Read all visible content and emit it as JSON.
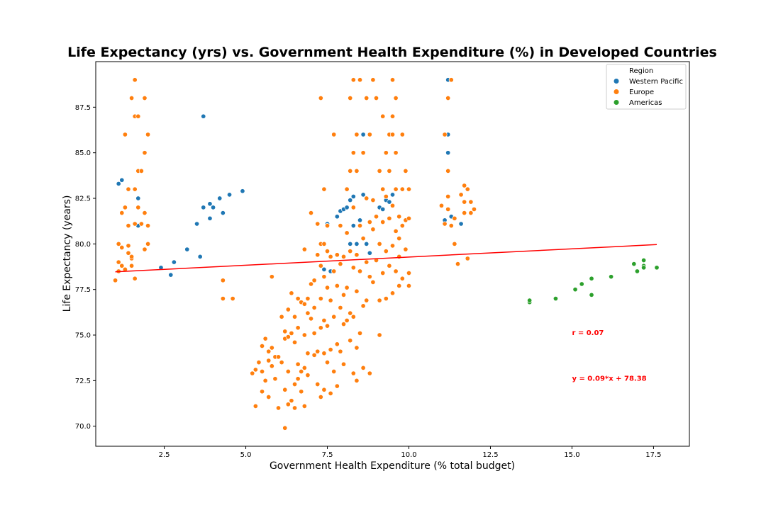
{
  "chart_data": {
    "type": "scatter",
    "title": "Life Expectancy (yrs) vs. Government Health Expenditure (%) in Developed Countries",
    "xlabel": "Government Health Expenditure (% total budget)",
    "ylabel": "Life Expectancy (years)",
    "xlim": [
      0.4,
      18.6
    ],
    "ylim": [
      68.9,
      90.0
    ],
    "xticks": [
      2.5,
      5.0,
      7.5,
      10.0,
      12.5,
      15.0,
      17.5
    ],
    "xtick_labels": [
      "2.5",
      "5.0",
      "7.5",
      "10.0",
      "12.5",
      "15.0",
      "17.5"
    ],
    "yticks": [
      70.0,
      72.5,
      75.0,
      77.5,
      80.0,
      82.5,
      85.0,
      87.5
    ],
    "ytick_labels": [
      "70.0",
      "72.5",
      "75.0",
      "77.5",
      "80.0",
      "82.5",
      "85.0",
      "87.5"
    ],
    "grid": false,
    "legend": {
      "title": "Region",
      "placement": "top-right"
    },
    "series": [
      {
        "name": "Western Pacific",
        "color": "#1f77b4",
        "points": [
          [
            1.1,
            83.3
          ],
          [
            1.2,
            83.5
          ],
          [
            1.7,
            82.5
          ],
          [
            1.7,
            81.0
          ],
          [
            2.4,
            78.7
          ],
          [
            2.7,
            78.3
          ],
          [
            2.8,
            79.0
          ],
          [
            3.2,
            79.7
          ],
          [
            3.5,
            81.1
          ],
          [
            3.6,
            79.3
          ],
          [
            3.7,
            87.0
          ],
          [
            3.7,
            82.0
          ],
          [
            3.9,
            81.4
          ],
          [
            3.9,
            82.2
          ],
          [
            4.0,
            82.0
          ],
          [
            4.2,
            82.5
          ],
          [
            4.3,
            81.7
          ],
          [
            4.5,
            82.7
          ],
          [
            4.9,
            82.9
          ],
          [
            7.5,
            81.1
          ],
          [
            7.4,
            78.6
          ],
          [
            7.6,
            78.5
          ],
          [
            7.8,
            81.5
          ],
          [
            7.9,
            81.8
          ],
          [
            8.0,
            81.9
          ],
          [
            8.1,
            82.0
          ],
          [
            8.2,
            82.4
          ],
          [
            8.2,
            80.0
          ],
          [
            8.3,
            82.6
          ],
          [
            8.3,
            81.0
          ],
          [
            8.4,
            80.0
          ],
          [
            8.5,
            81.3
          ],
          [
            8.6,
            86.0
          ],
          [
            8.6,
            82.7
          ],
          [
            8.7,
            80.0
          ],
          [
            8.8,
            79.5
          ],
          [
            9.1,
            82.0
          ],
          [
            9.2,
            81.9
          ],
          [
            9.3,
            82.4
          ],
          [
            9.4,
            82.3
          ],
          [
            9.5,
            82.7
          ],
          [
            11.2,
            89.0
          ],
          [
            11.2,
            86.0
          ],
          [
            11.2,
            85.0
          ],
          [
            11.1,
            81.3
          ],
          [
            11.3,
            81.5
          ],
          [
            11.6,
            81.1
          ]
        ]
      },
      {
        "name": "Europe",
        "color": "#ff7f0e",
        "points": [
          [
            1.0,
            78.0
          ],
          [
            1.1,
            78.5
          ],
          [
            1.1,
            80.0
          ],
          [
            1.2,
            79.8
          ],
          [
            1.2,
            81.7
          ],
          [
            1.3,
            82.0
          ],
          [
            1.3,
            86.0
          ],
          [
            1.3,
            78.6
          ],
          [
            1.4,
            79.5
          ],
          [
            1.4,
            79.9
          ],
          [
            1.4,
            83.0
          ],
          [
            1.4,
            81.0
          ],
          [
            1.5,
            88.0
          ],
          [
            1.5,
            79.2
          ],
          [
            1.5,
            78.8
          ],
          [
            1.6,
            89.0
          ],
          [
            1.6,
            87.0
          ],
          [
            1.6,
            83.0
          ],
          [
            1.6,
            81.1
          ],
          [
            1.6,
            78.1
          ],
          [
            1.7,
            84.0
          ],
          [
            1.7,
            87.0
          ],
          [
            1.7,
            82.0
          ],
          [
            1.8,
            84.0
          ],
          [
            1.8,
            81.1
          ],
          [
            1.9,
            85.0
          ],
          [
            1.9,
            81.7
          ],
          [
            1.9,
            79.7
          ],
          [
            1.9,
            88.0
          ],
          [
            2.0,
            86.0
          ],
          [
            2.0,
            81.0
          ],
          [
            2.0,
            80.0
          ],
          [
            1.1,
            79.0
          ],
          [
            1.2,
            78.8
          ],
          [
            1.5,
            79.3
          ],
          [
            4.3,
            78.0
          ],
          [
            4.3,
            77.0
          ],
          [
            4.6,
            77.0
          ],
          [
            5.2,
            72.9
          ],
          [
            5.3,
            73.1
          ],
          [
            5.3,
            71.1
          ],
          [
            5.4,
            73.5
          ],
          [
            5.5,
            71.9
          ],
          [
            5.5,
            73.0
          ],
          [
            5.5,
            74.4
          ],
          [
            5.6,
            74.8
          ],
          [
            5.6,
            72.5
          ],
          [
            5.7,
            74.1
          ],
          [
            5.7,
            73.6
          ],
          [
            5.7,
            71.6
          ],
          [
            5.8,
            78.2
          ],
          [
            5.8,
            74.3
          ],
          [
            5.8,
            73.3
          ],
          [
            5.9,
            73.8
          ],
          [
            5.9,
            72.6
          ],
          [
            6.0,
            73.8
          ],
          [
            6.0,
            71.0
          ],
          [
            6.1,
            76.0
          ],
          [
            6.1,
            73.5
          ],
          [
            6.2,
            74.8
          ],
          [
            6.2,
            75.2
          ],
          [
            6.2,
            72.0
          ],
          [
            6.2,
            69.9
          ],
          [
            6.3,
            76.4
          ],
          [
            6.3,
            74.9
          ],
          [
            6.3,
            73.0
          ],
          [
            6.3,
            71.2
          ],
          [
            6.4,
            77.3
          ],
          [
            6.4,
            75.1
          ],
          [
            6.4,
            71.4
          ],
          [
            6.5,
            76.0
          ],
          [
            6.5,
            74.6
          ],
          [
            6.5,
            72.3
          ],
          [
            6.5,
            71.0
          ],
          [
            6.6,
            77.0
          ],
          [
            6.6,
            75.4
          ],
          [
            6.6,
            73.4
          ],
          [
            6.6,
            72.6
          ],
          [
            6.7,
            76.8
          ],
          [
            6.7,
            73.0
          ],
          [
            6.7,
            71.9
          ],
          [
            6.8,
            79.7
          ],
          [
            6.8,
            76.7
          ],
          [
            6.8,
            75.0
          ],
          [
            6.8,
            73.2
          ],
          [
            6.8,
            71.1
          ],
          [
            6.9,
            77.0
          ],
          [
            6.9,
            76.2
          ],
          [
            6.9,
            74.0
          ],
          [
            6.9,
            72.8
          ],
          [
            7.0,
            81.7
          ],
          [
            7.0,
            77.8
          ],
          [
            7.0,
            75.9
          ],
          [
            7.1,
            78.0
          ],
          [
            7.1,
            76.5
          ],
          [
            7.1,
            75.1
          ],
          [
            7.1,
            73.9
          ],
          [
            7.2,
            81.1
          ],
          [
            7.2,
            79.4
          ],
          [
            7.2,
            74.1
          ],
          [
            7.2,
            72.3
          ],
          [
            7.3,
            88.0
          ],
          [
            7.3,
            80.0
          ],
          [
            7.3,
            78.8
          ],
          [
            7.3,
            77.0
          ],
          [
            7.3,
            75.4
          ],
          [
            7.3,
            71.6
          ],
          [
            7.4,
            83.0
          ],
          [
            7.4,
            80.0
          ],
          [
            7.4,
            78.2
          ],
          [
            7.4,
            75.8
          ],
          [
            7.4,
            74.0
          ],
          [
            7.4,
            72.0
          ],
          [
            7.5,
            81.0
          ],
          [
            7.5,
            79.6
          ],
          [
            7.5,
            77.6
          ],
          [
            7.5,
            75.5
          ],
          [
            7.5,
            73.5
          ],
          [
            7.6,
            79.3
          ],
          [
            7.6,
            76.9
          ],
          [
            7.6,
            74.2
          ],
          [
            7.6,
            71.8
          ],
          [
            7.7,
            86.0
          ],
          [
            7.7,
            78.5
          ],
          [
            7.7,
            76.0
          ],
          [
            7.7,
            73.0
          ],
          [
            7.8,
            79.4
          ],
          [
            7.8,
            77.7
          ],
          [
            7.8,
            74.5
          ],
          [
            7.8,
            72.2
          ],
          [
            7.9,
            81.0
          ],
          [
            7.9,
            78.9
          ],
          [
            7.9,
            76.5
          ],
          [
            7.9,
            74.1
          ],
          [
            8.0,
            79.3
          ],
          [
            8.0,
            77.2
          ],
          [
            8.0,
            75.6
          ],
          [
            8.0,
            73.4
          ],
          [
            8.1,
            83.0
          ],
          [
            8.1,
            80.6
          ],
          [
            8.1,
            77.6
          ],
          [
            8.1,
            75.8
          ],
          [
            8.2,
            88.0
          ],
          [
            8.2,
            84.0
          ],
          [
            8.2,
            79.6
          ],
          [
            8.2,
            76.2
          ],
          [
            8.2,
            74.7
          ],
          [
            8.3,
            89.0
          ],
          [
            8.3,
            85.0
          ],
          [
            8.3,
            82.0
          ],
          [
            8.3,
            78.7
          ],
          [
            8.3,
            76.0
          ],
          [
            8.3,
            72.9
          ],
          [
            8.4,
            86.0
          ],
          [
            8.4,
            84.0
          ],
          [
            8.4,
            79.4
          ],
          [
            8.4,
            77.4
          ],
          [
            8.4,
            74.3
          ],
          [
            8.4,
            72.5
          ],
          [
            8.5,
            89.0
          ],
          [
            8.5,
            81.0
          ],
          [
            8.5,
            78.5
          ],
          [
            8.5,
            75.1
          ],
          [
            8.6,
            85.0
          ],
          [
            8.6,
            80.3
          ],
          [
            8.6,
            76.6
          ],
          [
            8.6,
            73.2
          ],
          [
            8.7,
            88.0
          ],
          [
            8.7,
            82.5
          ],
          [
            8.7,
            79.0
          ],
          [
            8.7,
            76.9
          ],
          [
            8.8,
            86.0
          ],
          [
            8.8,
            81.2
          ],
          [
            8.8,
            78.2
          ],
          [
            8.8,
            72.9
          ],
          [
            8.9,
            89.0
          ],
          [
            8.9,
            82.4
          ],
          [
            8.9,
            80.8
          ],
          [
            8.9,
            77.9
          ],
          [
            9.0,
            88.0
          ],
          [
            9.0,
            81.5
          ],
          [
            9.0,
            79.1
          ],
          [
            9.1,
            84.0
          ],
          [
            9.1,
            80.0
          ],
          [
            9.1,
            76.9
          ],
          [
            9.1,
            75.0
          ],
          [
            9.2,
            87.0
          ],
          [
            9.2,
            83.0
          ],
          [
            9.2,
            81.2
          ],
          [
            9.2,
            78.4
          ],
          [
            9.3,
            85.0
          ],
          [
            9.3,
            82.6
          ],
          [
            9.3,
            79.6
          ],
          [
            9.3,
            77.0
          ],
          [
            9.4,
            86.0
          ],
          [
            9.4,
            84.0
          ],
          [
            9.4,
            81.4
          ],
          [
            9.4,
            78.8
          ],
          [
            9.5,
            89.0
          ],
          [
            9.5,
            86.0
          ],
          [
            9.5,
            82.1
          ],
          [
            9.5,
            79.9
          ],
          [
            9.5,
            77.3
          ],
          [
            9.6,
            88.0
          ],
          [
            9.6,
            85.0
          ],
          [
            9.6,
            83.0
          ],
          [
            9.6,
            80.7
          ],
          [
            9.6,
            78.5
          ],
          [
            9.7,
            81.5
          ],
          [
            9.7,
            79.3
          ],
          [
            9.7,
            77.7
          ],
          [
            9.8,
            83.0
          ],
          [
            9.8,
            81.0
          ],
          [
            9.8,
            78.1
          ],
          [
            9.9,
            84.0
          ],
          [
            9.9,
            81.3
          ],
          [
            9.9,
            79.7
          ],
          [
            10.0,
            83.0
          ],
          [
            10.0,
            81.4
          ],
          [
            10.0,
            78.4
          ],
          [
            10.0,
            77.7
          ],
          [
            9.8,
            86.0
          ],
          [
            9.7,
            80.3
          ],
          [
            9.5,
            87.0
          ],
          [
            11.0,
            82.1
          ],
          [
            11.1,
            81.1
          ],
          [
            11.1,
            86.0
          ],
          [
            11.2,
            84.0
          ],
          [
            11.2,
            88.0
          ],
          [
            11.2,
            82.6
          ],
          [
            11.2,
            81.9
          ],
          [
            11.3,
            89.0
          ],
          [
            11.3,
            81.0
          ],
          [
            11.4,
            80.0
          ],
          [
            11.4,
            81.4
          ],
          [
            11.5,
            78.9
          ],
          [
            11.6,
            82.7
          ],
          [
            11.7,
            83.2
          ],
          [
            11.7,
            82.3
          ],
          [
            11.7,
            81.7
          ],
          [
            11.8,
            83.0
          ],
          [
            11.8,
            79.2
          ],
          [
            11.9,
            81.7
          ],
          [
            11.9,
            82.3
          ],
          [
            12.0,
            81.9
          ]
        ]
      },
      {
        "name": "Americas",
        "color": "#2ca02c",
        "points": [
          [
            13.7,
            76.8
          ],
          [
            13.7,
            76.9
          ],
          [
            14.5,
            77.0
          ],
          [
            15.1,
            77.5
          ],
          [
            15.3,
            77.8
          ],
          [
            15.6,
            78.1
          ],
          [
            15.6,
            77.2
          ],
          [
            16.2,
            78.2
          ],
          [
            16.9,
            78.9
          ],
          [
            17.0,
            78.5
          ],
          [
            17.2,
            79.1
          ],
          [
            17.2,
            78.8
          ],
          [
            17.2,
            78.7
          ],
          [
            17.6,
            78.7
          ]
        ]
      }
    ],
    "regression": {
      "slope": 0.09,
      "intercept": 78.38,
      "x_range": [
        1.0,
        17.6
      ],
      "color": "#ff0000"
    },
    "annotations": [
      {
        "text": "r = 0.07",
        "x": 15.0,
        "y": 75.0,
        "color": "#ff0000"
      },
      {
        "text": "y = 0.09*x + 78.38",
        "x": 15.0,
        "y": 72.5,
        "color": "#ff0000"
      }
    ]
  }
}
